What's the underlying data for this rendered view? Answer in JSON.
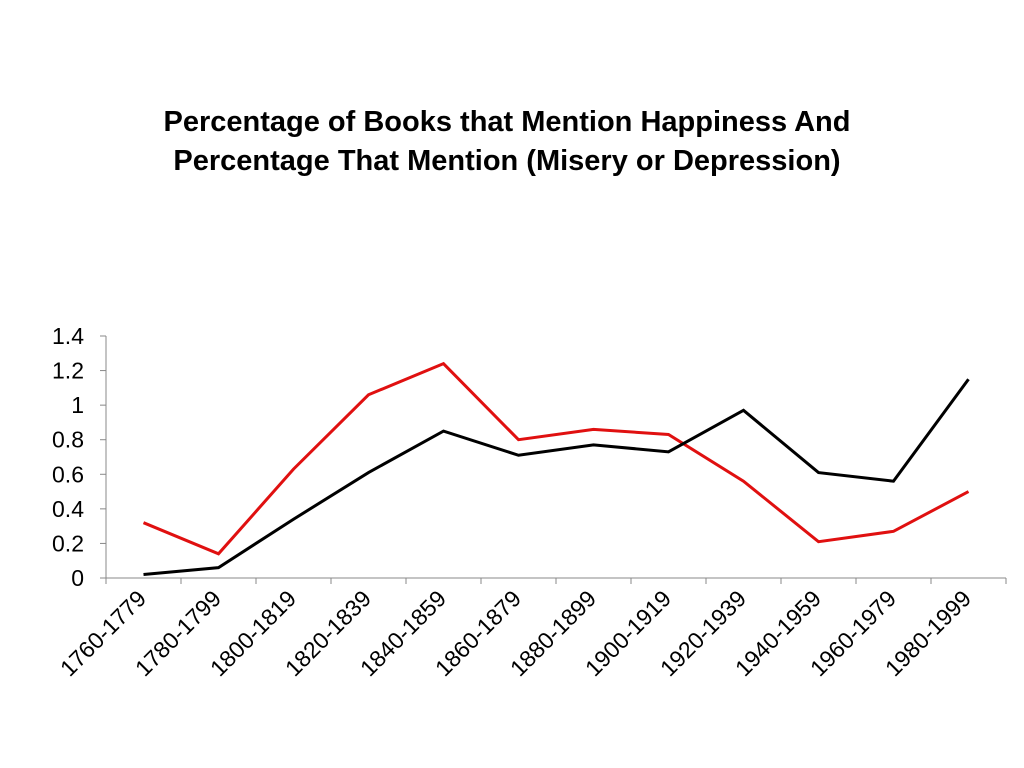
{
  "chart_data": {
    "type": "line",
    "title_lines": [
      "Percentage of Books that Mention Happiness And",
      "Percentage That Mention (Misery or Depression)"
    ],
    "xlabel": "",
    "ylabel": "",
    "categories": [
      "1760-1779",
      "1780-1799",
      "1800-1819",
      "1820-1839",
      "1840-1859",
      "1860-1879",
      "1880-1899",
      "1900-1919",
      "1920-1939",
      "1940-1959",
      "1960-1979",
      "1980-1999"
    ],
    "yticks": [
      "0",
      "0.2",
      "0.4",
      "0.6",
      "0.8",
      "1",
      "1.2",
      "1.4"
    ],
    "ylim": [
      0,
      1.4
    ],
    "grid": false,
    "legend": "none",
    "series": [
      {
        "color": "#e01010",
        "values": [
          0.32,
          0.14,
          0.63,
          1.06,
          1.24,
          0.8,
          0.86,
          0.83,
          0.56,
          0.21,
          0.27,
          0.5
        ]
      },
      {
        "color": "#000000",
        "values": [
          0.02,
          0.06,
          0.34,
          0.61,
          0.85,
          0.71,
          0.77,
          0.73,
          0.97,
          0.61,
          0.56,
          1.15
        ]
      }
    ]
  }
}
